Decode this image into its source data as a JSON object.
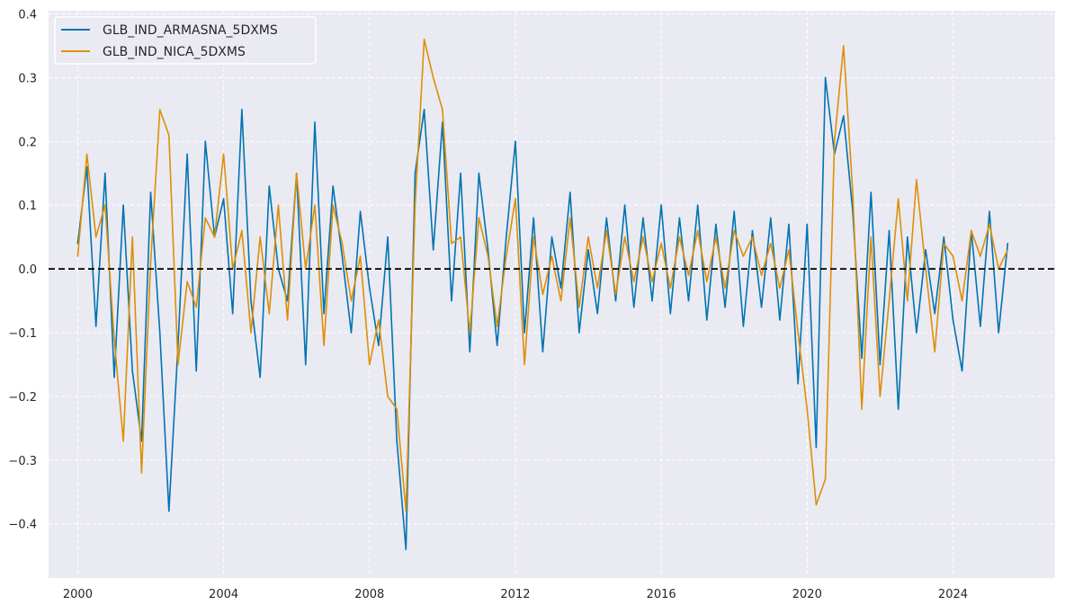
{
  "chart_data": {
    "type": "line",
    "title": "",
    "xlabel": "",
    "ylabel": "",
    "xlim": [
      1999.2,
      2026.8
    ],
    "ylim": [
      -0.485,
      0.405
    ],
    "x_ticks": [
      2000,
      2004,
      2008,
      2012,
      2016,
      2020,
      2024
    ],
    "x_tick_labels": [
      "2000",
      "2004",
      "2008",
      "2012",
      "2016",
      "2020",
      "2024"
    ],
    "y_ticks": [
      0.4,
      0.3,
      0.2,
      0.1,
      0.0,
      -0.1,
      -0.2,
      -0.3,
      -0.4
    ],
    "y_tick_labels": [
      "0.4",
      "0.3",
      "0.2",
      "0.1",
      "0.0",
      "−0.1",
      "−0.2",
      "−0.3",
      "−0.4"
    ],
    "grid": true,
    "legend_position": "top-left",
    "reference_line": {
      "y": 0,
      "style": "dashed",
      "color": "#000000"
    },
    "colors": {
      "background": "#eaeaf2",
      "grid": "#ffffff"
    },
    "series": [
      {
        "name": "GLB_IND_ARMASNA_5DXMS",
        "color": "#0173b2",
        "x": [
          2000.0,
          2000.25,
          2000.5,
          2000.75,
          2001.0,
          2001.25,
          2001.5,
          2001.75,
          2002.0,
          2002.25,
          2002.5,
          2002.75,
          2003.0,
          2003.25,
          2003.5,
          2003.75,
          2004.0,
          2004.25,
          2004.5,
          2004.75,
          2005.0,
          2005.25,
          2005.5,
          2005.75,
          2006.0,
          2006.25,
          2006.5,
          2006.75,
          2007.0,
          2007.25,
          2007.5,
          2007.75,
          2008.0,
          2008.25,
          2008.5,
          2008.75,
          2009.0,
          2009.25,
          2009.5,
          2009.75,
          2010.0,
          2010.25,
          2010.5,
          2010.75,
          2011.0,
          2011.25,
          2011.5,
          2011.75,
          2012.0,
          2012.25,
          2012.5,
          2012.75,
          2013.0,
          2013.25,
          2013.5,
          2013.75,
          2014.0,
          2014.25,
          2014.5,
          2014.75,
          2015.0,
          2015.25,
          2015.5,
          2015.75,
          2016.0,
          2016.25,
          2016.5,
          2016.75,
          2017.0,
          2017.25,
          2017.5,
          2017.75,
          2018.0,
          2018.25,
          2018.5,
          2018.75,
          2019.0,
          2019.25,
          2019.5,
          2019.75,
          2020.0,
          2020.25,
          2020.5,
          2020.75,
          2021.0,
          2021.25,
          2021.5,
          2021.75,
          2022.0,
          2022.25,
          2022.5,
          2022.75,
          2023.0,
          2023.25,
          2023.5,
          2023.75,
          2024.0,
          2024.25,
          2024.5,
          2024.75,
          2025.0,
          2025.25,
          2025.5
        ],
        "values": [
          0.04,
          0.16,
          -0.09,
          0.15,
          -0.17,
          0.1,
          -0.16,
          -0.27,
          0.12,
          -0.1,
          -0.38,
          -0.12,
          0.18,
          -0.16,
          0.2,
          0.05,
          0.11,
          -0.07,
          0.25,
          -0.05,
          -0.17,
          0.13,
          0.0,
          -0.05,
          0.15,
          -0.15,
          0.23,
          -0.07,
          0.13,
          0.02,
          -0.1,
          0.09,
          -0.03,
          -0.12,
          0.05,
          -0.27,
          -0.44,
          0.15,
          0.25,
          0.03,
          0.23,
          -0.05,
          0.15,
          -0.13,
          0.15,
          0.03,
          -0.12,
          0.05,
          0.2,
          -0.1,
          0.08,
          -0.13,
          0.05,
          -0.03,
          0.12,
          -0.1,
          0.03,
          -0.07,
          0.08,
          -0.05,
          0.1,
          -0.06,
          0.08,
          -0.05,
          0.1,
          -0.07,
          0.08,
          -0.05,
          0.1,
          -0.08,
          0.07,
          -0.06,
          0.09,
          -0.09,
          0.06,
          -0.06,
          0.08,
          -0.08,
          0.07,
          -0.18,
          0.07,
          -0.28,
          0.3,
          0.18,
          0.24,
          0.09,
          -0.14,
          0.12,
          -0.15,
          0.06,
          -0.22,
          0.05,
          -0.1,
          0.03,
          -0.07,
          0.05,
          -0.08,
          -0.16,
          0.06,
          -0.09,
          0.09,
          -0.1,
          0.04
        ]
      },
      {
        "name": "GLB_IND_NICA_5DXMS",
        "color": "#de8f05",
        "x": [
          2000.0,
          2000.25,
          2000.5,
          2000.75,
          2001.0,
          2001.25,
          2001.5,
          2001.75,
          2002.0,
          2002.25,
          2002.5,
          2002.75,
          2003.0,
          2003.25,
          2003.5,
          2003.75,
          2004.0,
          2004.25,
          2004.5,
          2004.75,
          2005.0,
          2005.25,
          2005.5,
          2005.75,
          2006.0,
          2006.25,
          2006.5,
          2006.75,
          2007.0,
          2007.25,
          2007.5,
          2007.75,
          2008.0,
          2008.25,
          2008.5,
          2008.75,
          2009.0,
          2009.25,
          2009.5,
          2009.75,
          2010.0,
          2010.25,
          2010.5,
          2010.75,
          2011.0,
          2011.25,
          2011.5,
          2011.75,
          2012.0,
          2012.25,
          2012.5,
          2012.75,
          2013.0,
          2013.25,
          2013.5,
          2013.75,
          2014.0,
          2014.25,
          2014.5,
          2014.75,
          2015.0,
          2015.25,
          2015.5,
          2015.75,
          2016.0,
          2016.25,
          2016.5,
          2016.75,
          2017.0,
          2017.25,
          2017.5,
          2017.75,
          2018.0,
          2018.25,
          2018.5,
          2018.75,
          2019.0,
          2019.25,
          2019.5,
          2019.75,
          2020.0,
          2020.25,
          2020.5,
          2020.75,
          2021.0,
          2021.25,
          2021.5,
          2021.75,
          2022.0,
          2022.25,
          2022.5,
          2022.75,
          2023.0,
          2023.25,
          2023.5,
          2023.75,
          2024.0,
          2024.25,
          2024.5,
          2024.75,
          2025.0,
          2025.25,
          2025.5
        ],
        "values": [
          0.02,
          0.18,
          0.05,
          0.1,
          -0.11,
          -0.27,
          0.05,
          -0.32,
          0.01,
          0.25,
          0.21,
          -0.15,
          -0.02,
          -0.06,
          0.08,
          0.05,
          0.18,
          0.0,
          0.06,
          -0.1,
          0.05,
          -0.07,
          0.1,
          -0.08,
          0.15,
          0.0,
          0.1,
          -0.12,
          0.1,
          0.04,
          -0.05,
          0.02,
          -0.15,
          -0.08,
          -0.2,
          -0.22,
          -0.38,
          0.1,
          0.36,
          0.3,
          0.25,
          0.04,
          0.05,
          -0.1,
          0.08,
          0.02,
          -0.09,
          0.02,
          0.11,
          -0.15,
          0.05,
          -0.04,
          0.02,
          -0.05,
          0.08,
          -0.06,
          0.05,
          -0.03,
          0.06,
          -0.04,
          0.05,
          -0.02,
          0.05,
          -0.02,
          0.04,
          -0.03,
          0.05,
          -0.01,
          0.06,
          -0.02,
          0.05,
          -0.03,
          0.06,
          0.02,
          0.05,
          -0.01,
          0.04,
          -0.03,
          0.03,
          -0.1,
          -0.22,
          -0.37,
          -0.33,
          0.2,
          0.35,
          0.12,
          -0.22,
          0.05,
          -0.2,
          -0.05,
          0.11,
          -0.05,
          0.14,
          0.0,
          -0.13,
          0.04,
          0.02,
          -0.05,
          0.06,
          0.02,
          0.07,
          0.0,
          0.03
        ]
      }
    ]
  }
}
